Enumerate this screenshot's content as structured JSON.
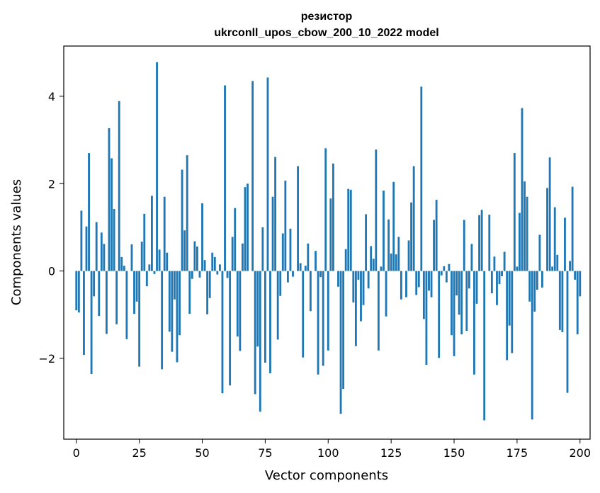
{
  "chart_data": {
    "type": "bar",
    "title": "резистор",
    "subtitle": "ukrconll_upos_cbow_200_10_2022 model",
    "xlabel": "Vector components",
    "ylabel": "Components values",
    "xlim": [
      -5,
      204
    ],
    "ylim": [
      -3.85,
      5.15
    ],
    "xticks": [
      0,
      25,
      50,
      75,
      100,
      125,
      150,
      175,
      200
    ],
    "yticks": [
      -2,
      0,
      2,
      4
    ],
    "ytick_labels": [
      "−2",
      "0",
      "2",
      "4"
    ],
    "grid": false,
    "bar_color": "#1f77b4",
    "values": [
      -0.9,
      -0.95,
      1.38,
      -1.92,
      1.02,
      2.7,
      -2.36,
      -0.58,
      1.12,
      -1.03,
      0.88,
      0.62,
      -1.44,
      3.27,
      2.58,
      1.42,
      -1.22,
      3.89,
      0.32,
      0.12,
      -1.56,
      0.0,
      0.61,
      -0.98,
      -0.7,
      -2.19,
      0.67,
      1.31,
      -0.35,
      0.15,
      1.72,
      -0.07,
      4.78,
      0.49,
      -2.25,
      1.7,
      0.42,
      -1.39,
      -1.85,
      -0.65,
      -2.09,
      -1.47,
      2.32,
      0.93,
      2.65,
      -0.98,
      -0.18,
      0.68,
      0.56,
      -0.15,
      1.55,
      0.25,
      -0.99,
      -0.62,
      0.42,
      0.32,
      -0.08,
      0.15,
      -2.8,
      4.25,
      -0.16,
      -2.62,
      0.78,
      1.44,
      -1.5,
      -1.83,
      0.63,
      1.92,
      2.0,
      0.0,
      4.35,
      -2.82,
      -1.73,
      -3.22,
      1.0,
      -2.1,
      4.43,
      -2.34,
      1.7,
      2.61,
      -1.57,
      -0.57,
      0.86,
      2.07,
      -0.26,
      0.97,
      -0.13,
      0.0,
      2.4,
      0.18,
      -1.98,
      0.12,
      0.63,
      -0.92,
      0.0,
      0.46,
      -2.37,
      -0.14,
      -2.17,
      2.81,
      -1.82,
      1.66,
      2.46,
      0.0,
      -0.36,
      -3.27,
      -2.7,
      0.5,
      1.88,
      1.86,
      -0.72,
      -1.72,
      -0.2,
      -1.15,
      -0.78,
      1.3,
      -0.4,
      0.57,
      0.28,
      2.78,
      -1.82,
      0.1,
      1.84,
      -1.04,
      1.18,
      0.4,
      2.04,
      0.38,
      0.78,
      -0.65,
      0.0,
      -0.6,
      0.7,
      1.57,
      2.4,
      -0.55,
      -0.37,
      4.22,
      -1.1,
      -2.15,
      -0.45,
      -0.6,
      1.17,
      1.63,
      -1.99,
      -0.1,
      0.11,
      -0.26,
      0.16,
      -1.47,
      -1.95,
      -0.56,
      -1.0,
      -1.45,
      1.17,
      -1.37,
      -0.4,
      0.62,
      -2.37,
      -0.75,
      1.28,
      1.4,
      -3.42,
      0.0,
      1.29,
      -0.51,
      0.33,
      -0.78,
      -0.3,
      -0.12,
      0.44,
      -2.04,
      -1.25,
      -1.88,
      2.7,
      0.1,
      1.33,
      3.73,
      2.05,
      1.7,
      -0.7,
      -3.4,
      -0.93,
      -0.43,
      0.83,
      -0.38,
      0.0,
      1.9,
      2.6,
      0.1,
      1.46,
      0.37,
      -1.35,
      -1.4,
      1.22,
      -2.79,
      0.23,
      1.93,
      -0.2,
      -1.45,
      -0.58
    ]
  }
}
